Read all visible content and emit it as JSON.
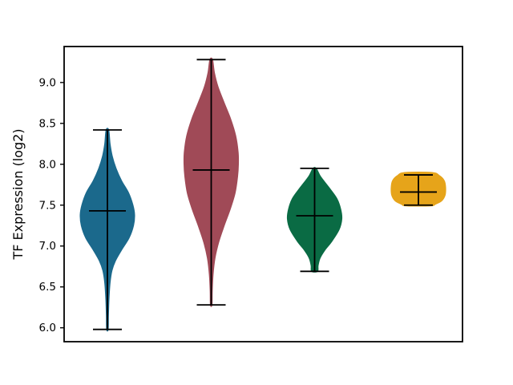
{
  "chart_data": {
    "type": "violin",
    "title": "",
    "xlabel": "",
    "ylabel": "TF Expression (log2)",
    "ylim": [
      5.83,
      9.44
    ],
    "yticks": [
      6.0,
      6.5,
      7.0,
      7.5,
      8.0,
      8.5,
      9.0
    ],
    "ytick_labels": [
      "6.0",
      "6.5",
      "7.0",
      "7.5",
      "8.0",
      "8.5",
      "9.0"
    ],
    "xtick_labels": [],
    "grid": false,
    "legend": null,
    "line_color": "#000000",
    "series": [
      {
        "name": "violin-1",
        "color": "#1b698c",
        "min": 5.98,
        "max": 8.42,
        "mean": 7.43,
        "profile": [
          [
            8.42,
            0.05
          ],
          [
            8.25,
            0.1
          ],
          [
            8.1,
            0.18
          ],
          [
            7.95,
            0.32
          ],
          [
            7.8,
            0.52
          ],
          [
            7.65,
            0.78
          ],
          [
            7.5,
            0.94
          ],
          [
            7.38,
            1.0
          ],
          [
            7.25,
            0.96
          ],
          [
            7.1,
            0.8
          ],
          [
            6.95,
            0.52
          ],
          [
            6.82,
            0.3
          ],
          [
            6.7,
            0.17
          ],
          [
            6.55,
            0.1
          ],
          [
            6.35,
            0.06
          ],
          [
            6.15,
            0.04
          ],
          [
            5.98,
            0.03
          ]
        ]
      },
      {
        "name": "violin-2",
        "color": "#a04a57",
        "min": 6.28,
        "max": 9.28,
        "mean": 7.93,
        "profile": [
          [
            9.28,
            0.05
          ],
          [
            9.12,
            0.12
          ],
          [
            8.95,
            0.25
          ],
          [
            8.75,
            0.48
          ],
          [
            8.55,
            0.72
          ],
          [
            8.35,
            0.9
          ],
          [
            8.15,
            0.99
          ],
          [
            8.0,
            1.0
          ],
          [
            7.85,
            0.97
          ],
          [
            7.65,
            0.88
          ],
          [
            7.45,
            0.7
          ],
          [
            7.25,
            0.48
          ],
          [
            7.05,
            0.28
          ],
          [
            6.85,
            0.14
          ],
          [
            6.65,
            0.07
          ],
          [
            6.45,
            0.04
          ],
          [
            6.28,
            0.03
          ]
        ]
      },
      {
        "name": "violin-3",
        "color": "#0a6b44",
        "min": 6.69,
        "max": 7.95,
        "mean": 7.37,
        "profile": [
          [
            7.95,
            0.06
          ],
          [
            7.85,
            0.22
          ],
          [
            7.72,
            0.52
          ],
          [
            7.58,
            0.82
          ],
          [
            7.45,
            0.96
          ],
          [
            7.33,
            1.0
          ],
          [
            7.2,
            0.9
          ],
          [
            7.05,
            0.62
          ],
          [
            6.95,
            0.38
          ],
          [
            6.85,
            0.2
          ],
          [
            6.76,
            0.13
          ],
          [
            6.69,
            0.11
          ]
        ]
      },
      {
        "name": "violin-4",
        "color": "#e6a41a",
        "min": 7.5,
        "max": 7.87,
        "mean": 7.66,
        "profile": [
          [
            7.9,
            0.5
          ],
          [
            7.86,
            0.78
          ],
          [
            7.8,
            0.95
          ],
          [
            7.72,
            1.0
          ],
          [
            7.62,
            0.98
          ],
          [
            7.55,
            0.85
          ],
          [
            7.51,
            0.62
          ],
          [
            7.49,
            0.45
          ]
        ]
      }
    ]
  }
}
